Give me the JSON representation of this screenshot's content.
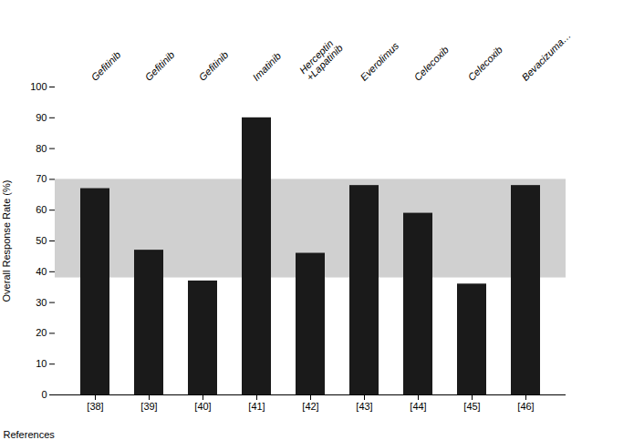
{
  "chart_data": {
    "type": "bar",
    "categories": [
      "[38]",
      "[39]",
      "[40]",
      "[41]",
      "[42]",
      "[43]",
      "[44]",
      "[45]",
      "[46]"
    ],
    "values": [
      67,
      47,
      37,
      90,
      46,
      68,
      59,
      36,
      68
    ],
    "color": "#1a1a1a",
    "annotations": [
      "Gefitinib",
      "Gefitinib",
      "Gefitinib",
      "Imatinib",
      "Herceptin\n+Lapatinib",
      "Everolimus",
      "Celecoxib",
      "Celecoxib",
      "Bevacizuma…"
    ],
    "ylabel": "Overall Response Rate (%)",
    "xlabel": "References",
    "ylim": [
      0,
      100
    ],
    "yticks": [
      0,
      10,
      20,
      30,
      40,
      50,
      60,
      70,
      80,
      90,
      100
    ],
    "band": [
      38,
      70
    ],
    "band_color": "#d0d0d0",
    "grid": false
  }
}
